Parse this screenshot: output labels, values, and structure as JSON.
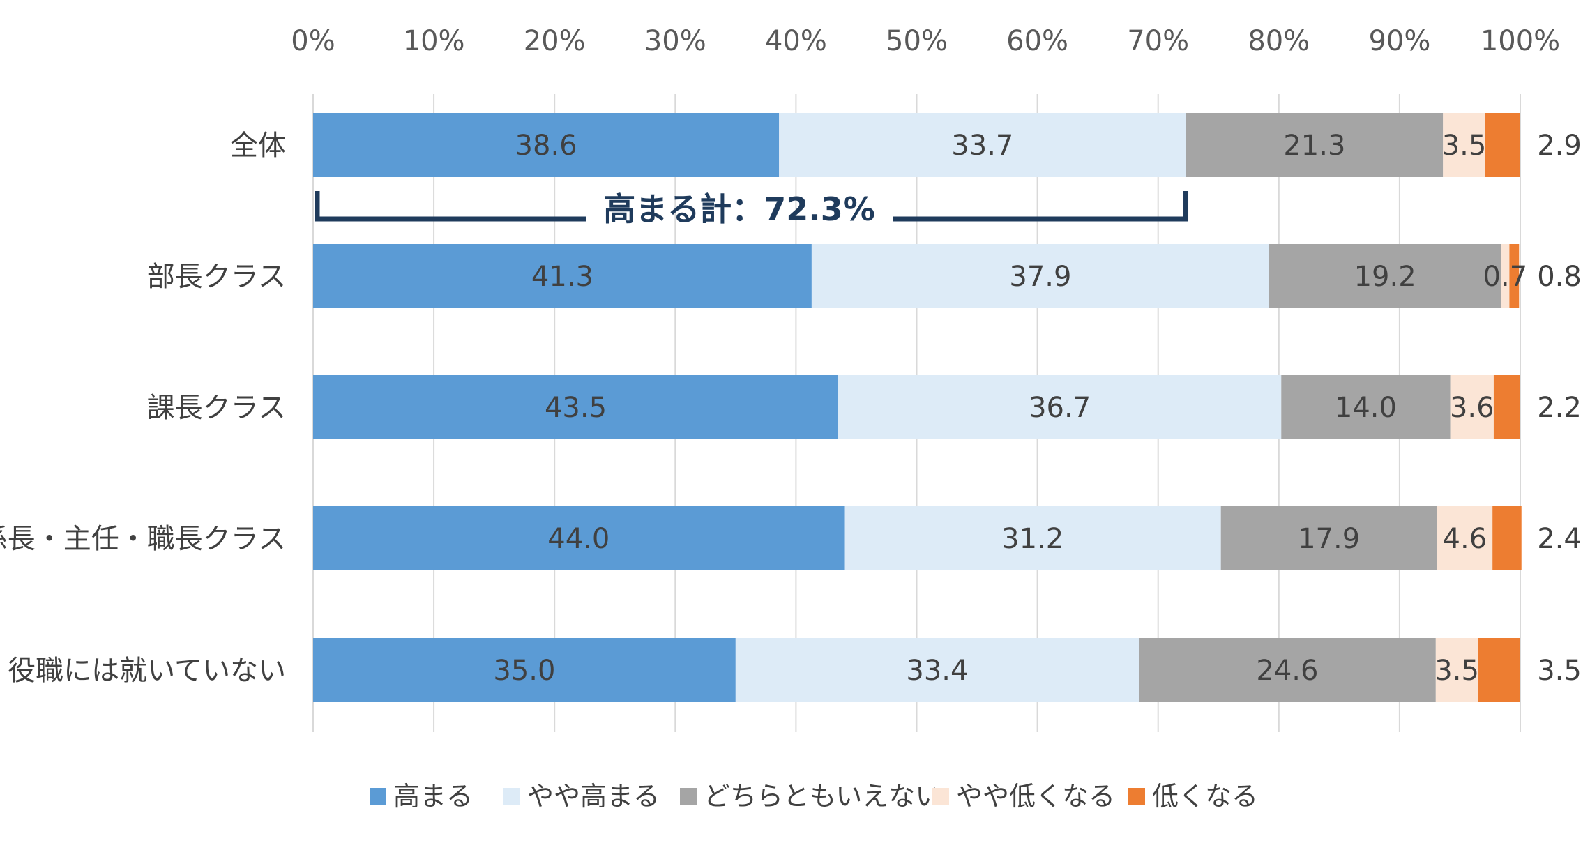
{
  "chart_data": {
    "type": "bar",
    "orientation": "horizontal",
    "stacked": "percent",
    "categories": [
      "全体",
      "部長クラス",
      "課長クラス",
      "係長・主任・職長クラス",
      "役職には就いていない"
    ],
    "series": [
      {
        "name": "高まる",
        "color": "#5b9bd5",
        "values": [
          38.6,
          41.3,
          43.5,
          44.0,
          35.0
        ],
        "labels": [
          "38.6",
          "41.3",
          "43.5",
          "44.0",
          "35.0"
        ]
      },
      {
        "name": "やや高まる",
        "color": "#ddebf7",
        "values": [
          33.7,
          37.9,
          36.7,
          31.2,
          33.4
        ],
        "labels": [
          "33.7",
          "37.9",
          "36.7",
          "31.2",
          "33.4"
        ]
      },
      {
        "name": "どちらともいえない",
        "color": "#a5a5a5",
        "values": [
          21.3,
          19.2,
          14.0,
          17.9,
          24.6
        ],
        "labels": [
          "21.3",
          "19.2",
          "14.0",
          "17.9",
          "24.6"
        ]
      },
      {
        "name": "やや低くなる",
        "color": "#fbe5d6",
        "values": [
          3.5,
          0.7,
          3.6,
          4.6,
          3.5
        ],
        "labels": [
          "3.5",
          "0.7",
          "3.6",
          "4.6",
          "3.5"
        ]
      },
      {
        "name": "低くなる",
        "color": "#ed7d31",
        "values": [
          2.9,
          0.8,
          2.2,
          2.4,
          3.5
        ],
        "labels": [
          "2.9",
          "0.8",
          "2.2",
          "2.4",
          "3.5"
        ]
      }
    ],
    "x_ticks": [
      "0%",
      "10%",
      "20%",
      "30%",
      "40%",
      "50%",
      "60%",
      "70%",
      "80%",
      "90%",
      "100%"
    ],
    "xlim": [
      0,
      100
    ],
    "gridlines": true,
    "legend_position": "bottom",
    "annotation": {
      "text": "高まる計：72.3%",
      "category": "全体",
      "from": 0,
      "to": 72.3
    }
  }
}
